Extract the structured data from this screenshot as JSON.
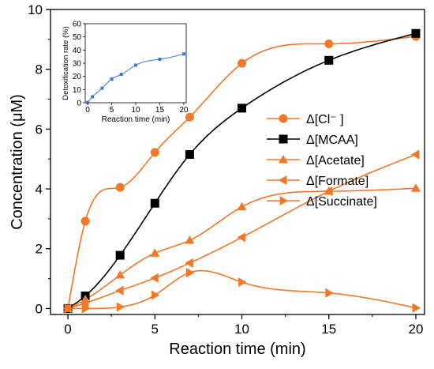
{
  "chart_data": [
    {
      "type": "line",
      "xlabel": "Reaction time (min)",
      "ylabel": "Concentration (μM)",
      "xlim": [
        -1,
        20.5
      ],
      "ylim": [
        -0.2,
        10
      ],
      "xticks": [
        0,
        5,
        10,
        15,
        20
      ],
      "yticks": [
        0,
        2,
        4,
        6,
        8,
        10
      ],
      "legend": {
        "position": "right-middle"
      },
      "series": [
        {
          "name": "Δ[Cl⁻ ]",
          "marker": "circle",
          "color": "#F07828",
          "line_color": "#F07828",
          "x": [
            0,
            1,
            3,
            5,
            7,
            10,
            15,
            20
          ],
          "y": [
            0.0,
            2.92,
            4.05,
            5.22,
            6.4,
            8.2,
            8.85,
            9.1
          ]
        },
        {
          "name": "Δ[MCAA]",
          "marker": "square",
          "color": "#000000",
          "line_color": "#000000",
          "x": [
            0,
            1,
            3,
            5,
            7,
            10,
            15,
            20
          ],
          "y": [
            0.0,
            0.42,
            1.78,
            3.52,
            5.15,
            6.7,
            8.3,
            9.2
          ]
        },
        {
          "name": "Δ[Acetate]",
          "marker": "triangle-up",
          "color": "#F07828",
          "line_color": "#F07828",
          "x": [
            0,
            1,
            3,
            5,
            7,
            10,
            15,
            20
          ],
          "y": [
            0.0,
            0.3,
            1.12,
            1.85,
            2.28,
            3.4,
            3.92,
            4.02
          ]
        },
        {
          "name": "Δ[Formate]",
          "marker": "triangle-left",
          "color": "#F07828",
          "line_color": "#F07828",
          "x": [
            0,
            1,
            3,
            5,
            7,
            10,
            15,
            20
          ],
          "y": [
            0.0,
            0.18,
            0.6,
            1.02,
            1.52,
            2.38,
            3.92,
            5.15
          ]
        },
        {
          "name": "Δ[Succinate]",
          "marker": "triangle-right",
          "color": "#F07828",
          "line_color": "#F07828",
          "x": [
            0,
            1,
            3,
            5,
            7,
            10,
            15,
            20
          ],
          "y": [
            0.0,
            0.0,
            0.05,
            0.45,
            1.2,
            0.88,
            0.52,
            0.02
          ]
        }
      ]
    },
    {
      "type": "line",
      "xlabel": "Reaction time (min)",
      "ylabel": "Detoxification rate (%)",
      "xlim": [
        -0.5,
        20.5
      ],
      "ylim": [
        0,
        60
      ],
      "xticks": [
        0,
        5,
        10,
        15,
        20
      ],
      "yticks": [
        0,
        10,
        20,
        30,
        40,
        50,
        60
      ],
      "series": [
        {
          "marker": "square",
          "color": "#3C78D8",
          "x": [
            0,
            1,
            3,
            5,
            7,
            10,
            15,
            20
          ],
          "y": [
            0.2,
            4.5,
            11.0,
            18.0,
            21.5,
            28.5,
            33.0,
            37.0
          ]
        }
      ]
    }
  ]
}
